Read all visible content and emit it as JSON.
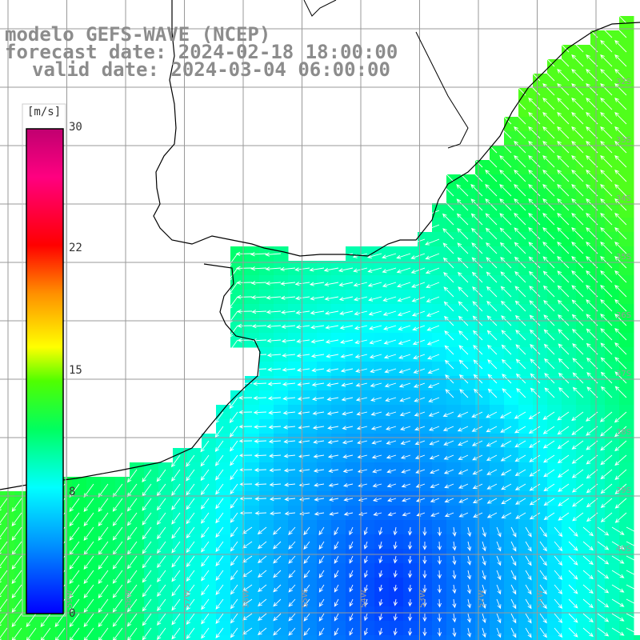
{
  "title": {
    "line1": "modelo GEFS-WAVE (NCEP)",
    "line2": "forecast date: 2024-02-18 18:00:00",
    "line3": "valid date: 2024-03-04 06:00:00"
  },
  "colorbar": {
    "unit": "[m/s]",
    "ticks": [
      "30",
      "22",
      "15",
      "8",
      "0"
    ],
    "tick_values": [
      30,
      22,
      15,
      8,
      0
    ],
    "range": [
      0,
      30
    ],
    "colors": [
      "#0000ff",
      "#00c8ff",
      "#00ffd0",
      "#00ff40",
      "#80ff00",
      "#ffff00",
      "#ff9000",
      "#ff0000",
      "#ff0080",
      "#c00070"
    ]
  },
  "map": {
    "lat_labels": [
      "32S",
      "33S",
      "34S",
      "35S",
      "36S",
      "37S",
      "38S",
      "39S",
      "40S"
    ],
    "lon_labels": [
      "59W",
      "58W",
      "57W",
      "56W",
      "55W",
      "54W",
      "53W",
      "52W",
      "51W"
    ],
    "field": "wind speed with direction arrows",
    "colors": {
      "land": "#ffffff",
      "coast": "#000000",
      "grid": "#999999",
      "arrow": "#ffffff"
    }
  }
}
